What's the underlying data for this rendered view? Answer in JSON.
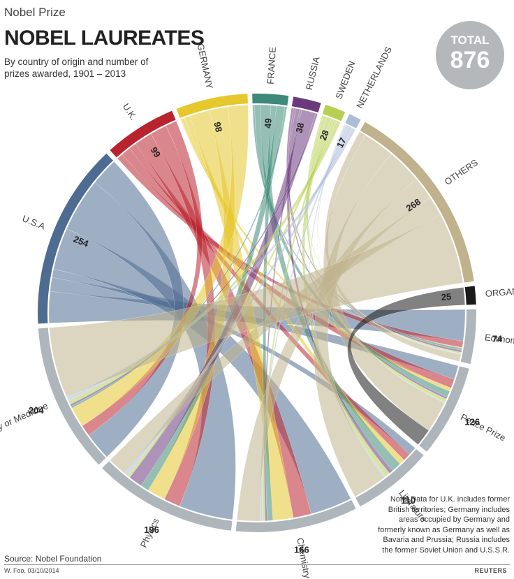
{
  "header": {
    "kicker": "Nobel Prize",
    "title": "NOBEL LAUREATES",
    "subtitle": "By country of origin and number of prizes awarded, 1901 – 2013"
  },
  "total": {
    "label": "TOTAL",
    "value": "876"
  },
  "note": "Note: Data for U.K. includes former British territories; Germany includes areas occupied by Germany and formerly known as Germany as well as Bavaria and Prussia; Russia includes the former Soviet Union and U.S.S.R.",
  "source": "Source: Nobel Foundation",
  "byline": "W. Foo, 03/10/2014",
  "credit": "REUTERS",
  "chart_data": {
    "type": "chord",
    "countries": [
      {
        "name": "U.S.A",
        "value": 254,
        "color": "#4e6c92"
      },
      {
        "name": "U.K.",
        "value": 99,
        "color": "#b9232e"
      },
      {
        "name": "GERMANY",
        "value": 98,
        "color": "#e6c72c"
      },
      {
        "name": "FRANCE",
        "value": 49,
        "color": "#3e8a78"
      },
      {
        "name": "RUSSIA",
        "value": 38,
        "color": "#6b3a7d"
      },
      {
        "name": "SWEDEN",
        "value": 28,
        "color": "#b7cf52"
      },
      {
        "name": "NETHERLANDS",
        "value": 17,
        "color": "#a9bcd8"
      },
      {
        "name": "OTHERS",
        "value": 268,
        "color": "#bfb28c"
      },
      {
        "name": "ORGANISATIONS",
        "value": 25,
        "color": "#1a1a1a"
      }
    ],
    "prizes": [
      {
        "name": "Economic Sciences",
        "value": 74
      },
      {
        "name": "Peace Prize",
        "value": 126
      },
      {
        "name": "Literature",
        "value": 110
      },
      {
        "name": "Chemistry",
        "value": 166
      },
      {
        "name": "Physics",
        "value": 196
      },
      {
        "name": "Physiology or Medicine",
        "value": 204
      }
    ],
    "prize_color": "#aeb6bc",
    "flows": [
      [
        45,
        20,
        12,
        60,
        77,
        40
      ],
      [
        9,
        13,
        11,
        26,
        24,
        16
      ],
      [
        1,
        5,
        8,
        29,
        26,
        29
      ],
      [
        3,
        9,
        14,
        8,
        12,
        3
      ],
      [
        3,
        3,
        6,
        3,
        20,
        3
      ],
      [
        2,
        5,
        7,
        4,
        4,
        6
      ],
      [
        1,
        1,
        2,
        3,
        5,
        5
      ],
      [
        10,
        45,
        50,
        33,
        28,
        102
      ],
      [
        0,
        25,
        0,
        0,
        0,
        0
      ]
    ]
  }
}
